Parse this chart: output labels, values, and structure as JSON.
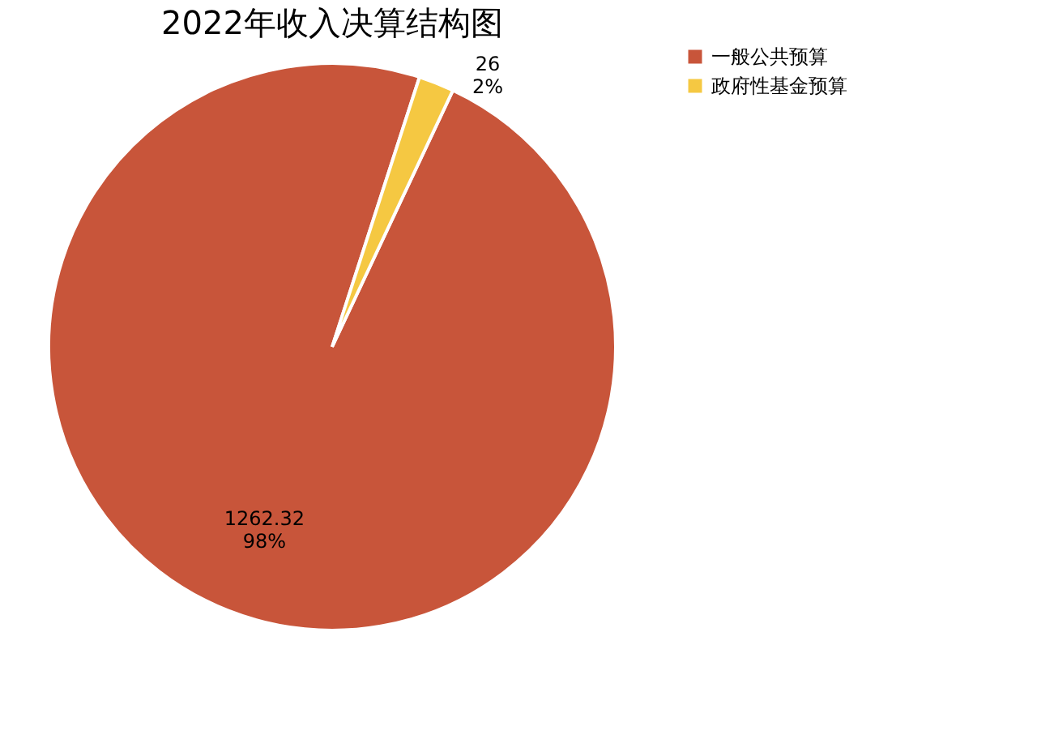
{
  "chart_data": {
    "type": "pie",
    "title": "2022年收入决算结构图",
    "categories": [
      "一般公共预算",
      "政府性基金预算"
    ],
    "values": [
      1262.32,
      26
    ],
    "colors": [
      "#c8553a",
      "#f5c842"
    ],
    "value_labels": [
      "1262.32\n98%",
      "26\n2%"
    ],
    "legend": "right"
  }
}
